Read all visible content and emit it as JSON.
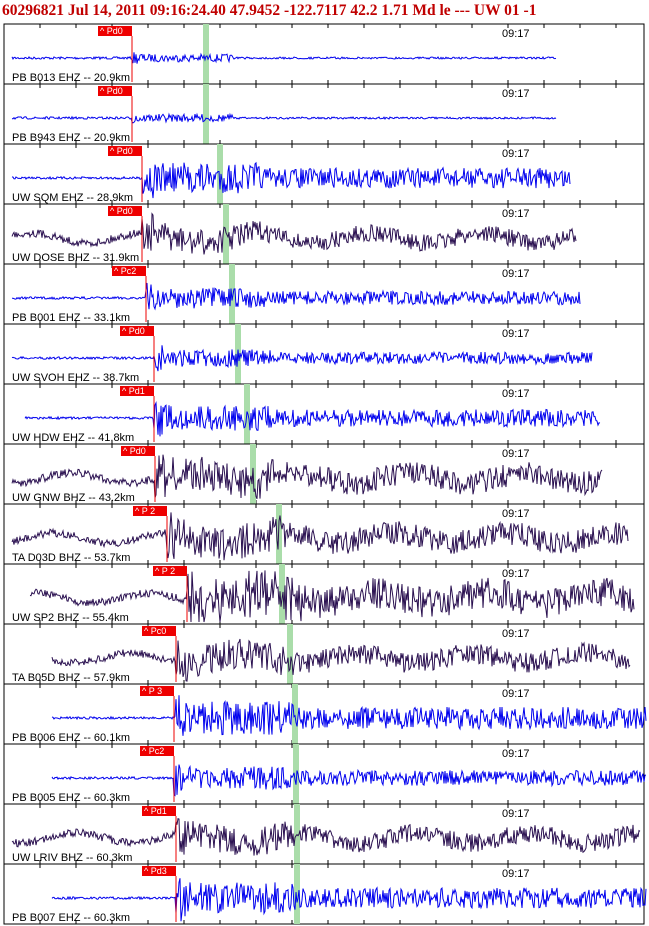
{
  "header": {
    "text": "60296821 Jul 14, 2011 09:16:24.40   47.9452 -122.7117 42.2 1.71 Md le --- UW 01  -1"
  },
  "colors": {
    "header": "#c00000",
    "ehz": "#0000ee",
    "bhz": "#2a1050",
    "pick_box": "#ee0000",
    "theoretical_line": "#aaddaa"
  },
  "chart_data": {
    "type": "line",
    "title": "60296821 Jul 14, 2011 09:16:24.40   47.9452 -122.7117 42.2 1.71 Md le --- UW 01  -1",
    "tick_label": "09:17",
    "series": [
      {
        "name": "PB B013 EHZ -- 20.9km",
        "pick": "Pd0",
        "type": "EHZ",
        "distance_km": 20.9
      },
      {
        "name": "PB B943 EHZ -- 20.9km",
        "pick": "Pd0",
        "type": "EHZ",
        "distance_km": 20.9
      },
      {
        "name": "UW SQM EHZ -- 28.9km",
        "pick": "Pd0",
        "type": "EHZ",
        "distance_km": 28.9
      },
      {
        "name": "UW DOSE BHZ -- 31.9km",
        "pick": "Pd0",
        "type": "BHZ",
        "distance_km": 31.9
      },
      {
        "name": "PB B001 EHZ -- 33.1km",
        "pick": "Pc2",
        "type": "EHZ",
        "distance_km": 33.1
      },
      {
        "name": "UW SVOH EHZ -- 38.7km",
        "pick": "Pd0",
        "type": "EHZ",
        "distance_km": 38.7
      },
      {
        "name": "UW HDW EHZ -- 41.8km",
        "pick": "Pd1",
        "type": "EHZ",
        "distance_km": 41.8
      },
      {
        "name": "UW GNW BHZ -- 43.2km",
        "pick": "Pd0",
        "type": "BHZ",
        "distance_km": 43.2
      },
      {
        "name": "TA D03D BHZ -- 53.7km",
        "pick": "P 2",
        "type": "BHZ",
        "distance_km": 53.7
      },
      {
        "name": "UW SP2 BHZ -- 55.4km",
        "pick": "P 2",
        "type": "BHZ",
        "distance_km": 55.4
      },
      {
        "name": "TA B05D BHZ -- 57.9km",
        "pick": "Pc0",
        "type": "BHZ",
        "distance_km": 57.9
      },
      {
        "name": "PB B006 EHZ -- 60.1km",
        "pick": "P 3",
        "type": "EHZ",
        "distance_km": 60.1
      },
      {
        "name": "PB B005 EHZ -- 60.3km",
        "pick": "Pc2",
        "type": "EHZ",
        "distance_km": 60.3
      },
      {
        "name": "UW LRIV BHZ -- 60.3km",
        "pick": "Pd1",
        "type": "BHZ",
        "distance_km": 60.3
      },
      {
        "name": "PB B007 EHZ -- 60.3km",
        "pick": "Pd3",
        "type": "EHZ",
        "distance_km": 60.3
      }
    ]
  }
}
